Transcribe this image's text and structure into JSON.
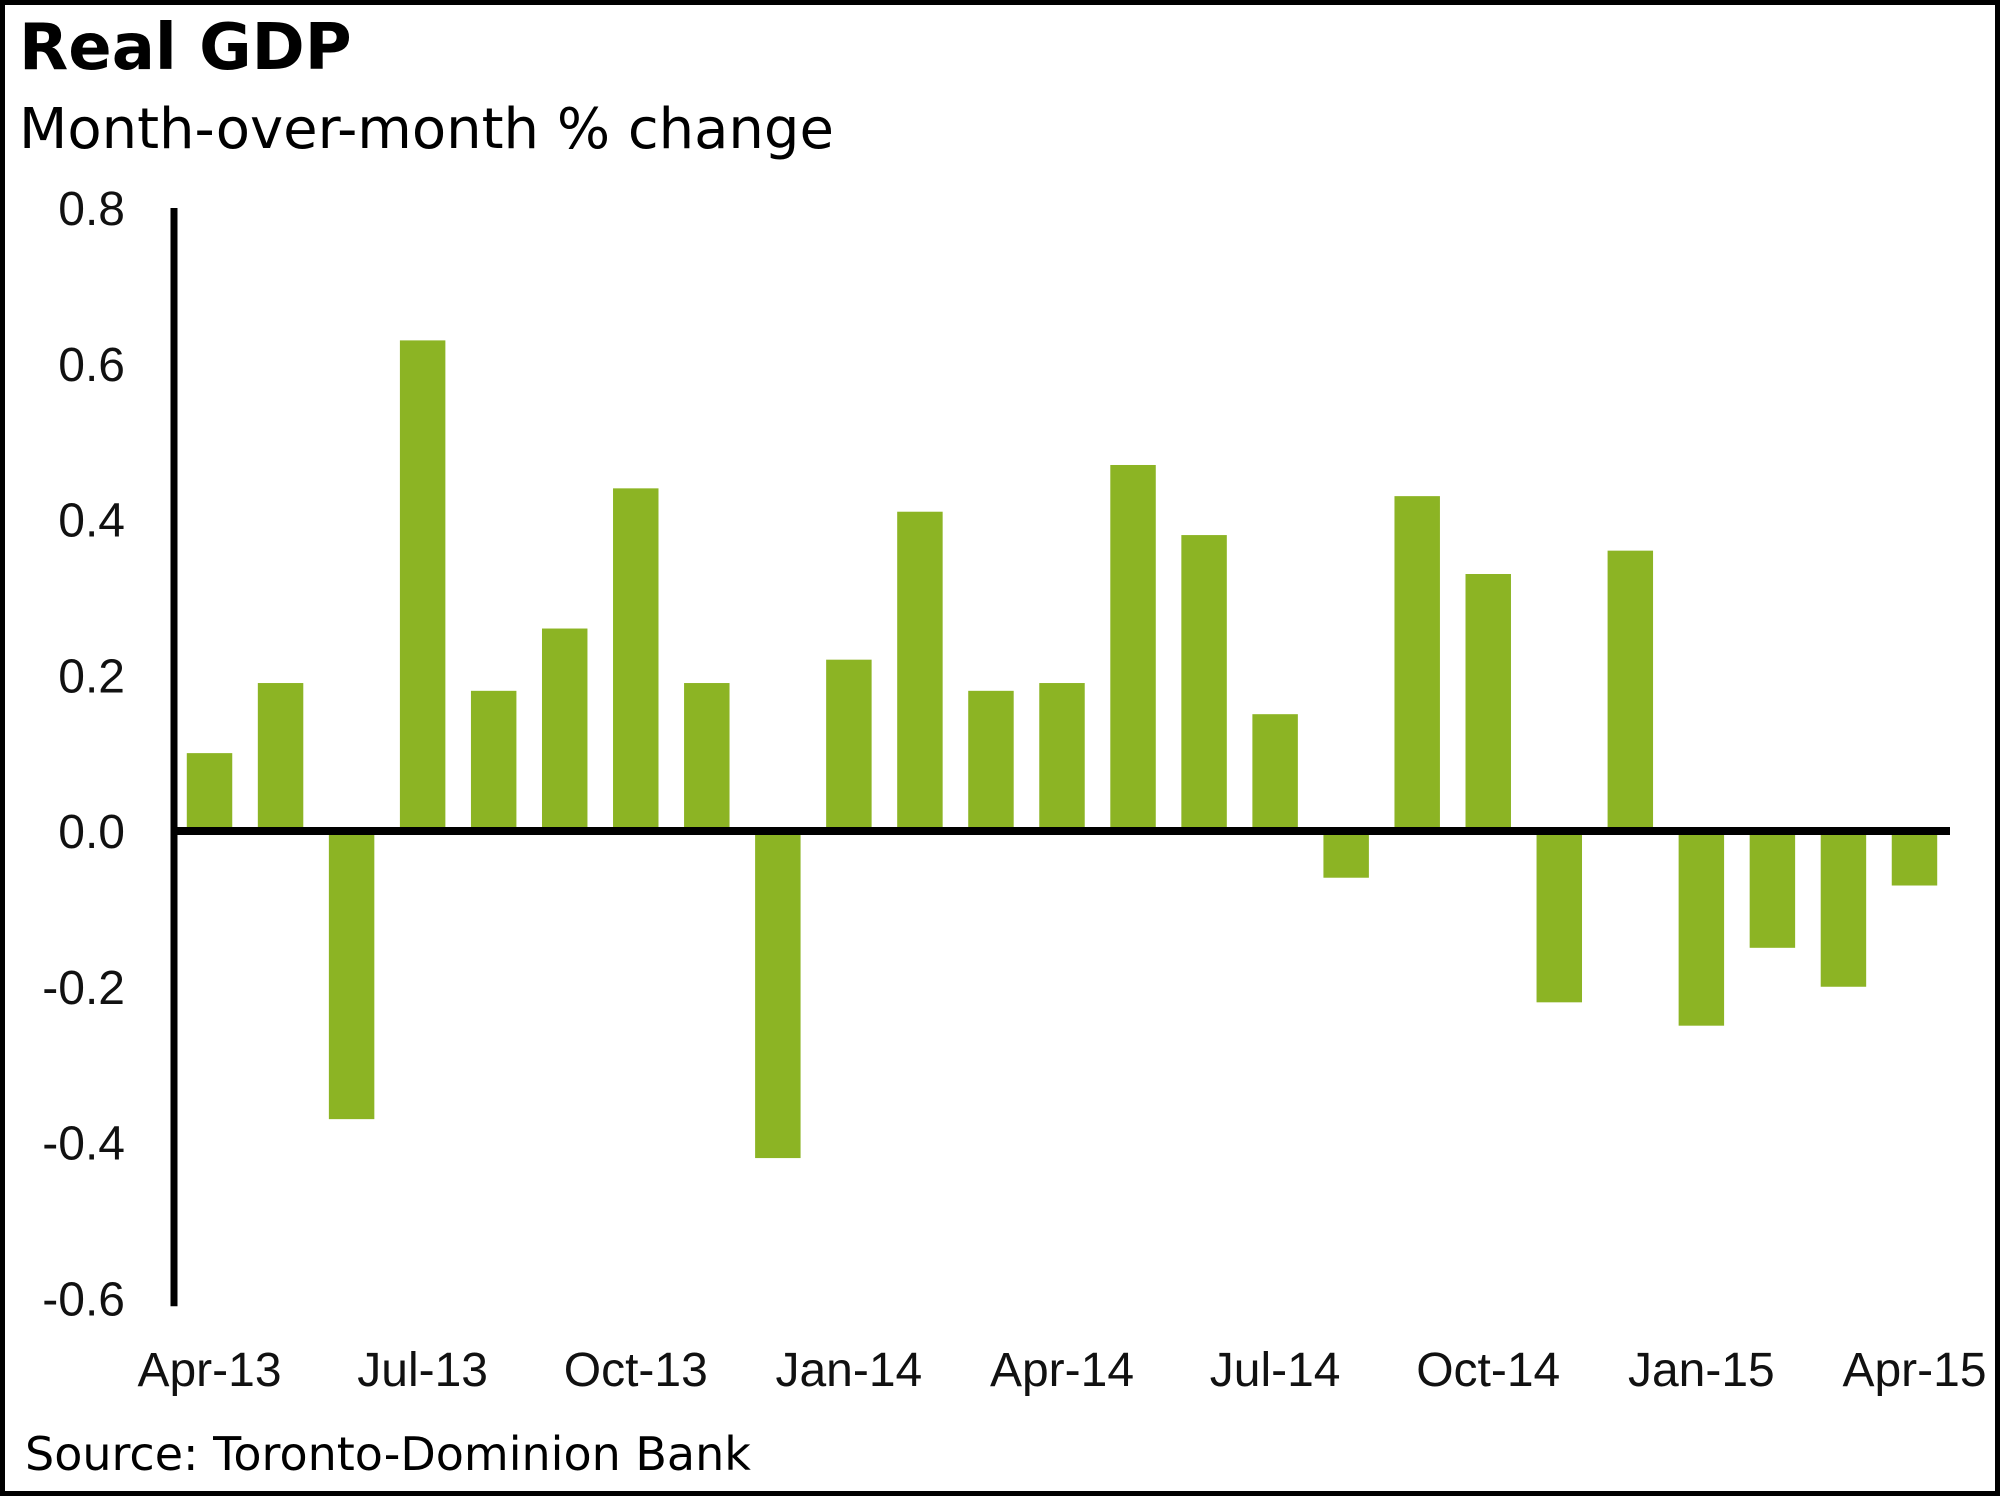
{
  "header": {
    "title": "Real GDP",
    "subtitle": "Month-over-month % change"
  },
  "footer": {
    "source": "Source: Toronto-Dominion Bank"
  },
  "chart_data": {
    "type": "bar",
    "title": "Real GDP",
    "subtitle": "Month-over-month % change",
    "xlabel": "",
    "ylabel": "",
    "ylim": [
      -0.6,
      0.8
    ],
    "yticks": [
      "0.8",
      "0.6",
      "0.4",
      "0.2",
      "0.0",
      "-0.2",
      "-0.4",
      "-0.6"
    ],
    "ytick_values": [
      0.8,
      0.6,
      0.4,
      0.2,
      0.0,
      -0.2,
      -0.4,
      -0.6
    ],
    "xtick_labels": [
      "Apr-13",
      "Jul-13",
      "Oct-13",
      "Jan-14",
      "Apr-14",
      "Jul-14",
      "Oct-14",
      "Jan-15",
      "Apr-15"
    ],
    "categories": [
      "Apr-13",
      "May-13",
      "Jun-13",
      "Jul-13",
      "Aug-13",
      "Sep-13",
      "Oct-13",
      "Nov-13",
      "Dec-13",
      "Jan-14",
      "Feb-14",
      "Mar-14",
      "Apr-14",
      "May-14",
      "Jun-14",
      "Jul-14",
      "Aug-14",
      "Sep-14",
      "Oct-14",
      "Nov-14",
      "Dec-14",
      "Jan-15",
      "Feb-15",
      "Mar-15",
      "Apr-15"
    ],
    "values": [
      0.1,
      0.19,
      -0.37,
      0.63,
      0.18,
      0.26,
      0.44,
      0.19,
      -0.42,
      0.22,
      0.41,
      0.18,
      0.19,
      0.47,
      0.38,
      0.15,
      -0.06,
      0.43,
      0.33,
      -0.22,
      0.36,
      -0.25,
      -0.15,
      -0.2,
      -0.07
    ],
    "grid": false,
    "legend": "none",
    "colors": {
      "bar": "#8cb424",
      "axis": "#000000"
    },
    "source": "Source: Toronto-Dominion Bank"
  }
}
